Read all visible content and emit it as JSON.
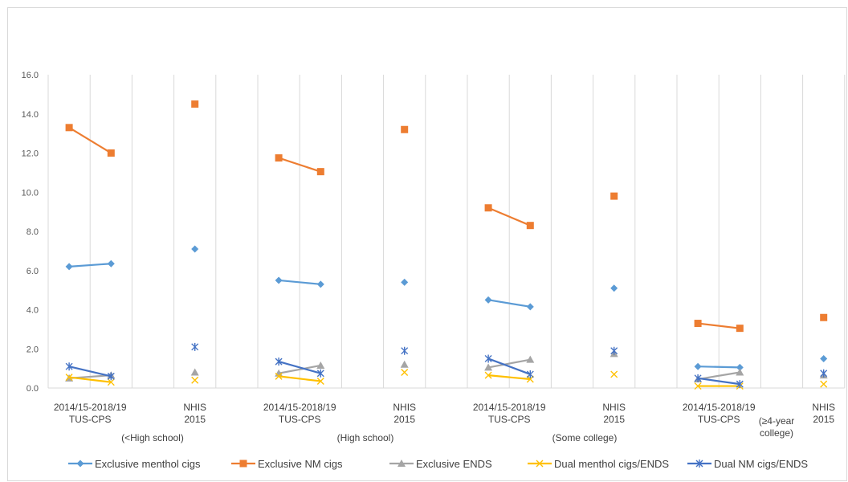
{
  "chart_data": {
    "type": "line",
    "title": "",
    "xlabel": "",
    "ylabel": "",
    "ylim": [
      0,
      16
    ],
    "y_ticks": [
      "0.0",
      "2.0",
      "4.0",
      "6.0",
      "8.0",
      "10.0",
      "12.0",
      "14.0",
      "16.0"
    ],
    "grid": "vertical",
    "legend_position": "bottom",
    "colors": {
      "Exclusive menthol cigs": "#5b9bd5",
      "Exclusive NM cigs": "#ed7d31",
      "Exclusive ENDS": "#a5a5a5",
      "Dual menthol cigs/ENDS": "#ffc000",
      "Dual NM cigs/ENDS": "#4472c4"
    },
    "x_labels": [
      [
        "2014/15-2018/19",
        "TUS-CPS"
      ],
      [
        "NHIS",
        "2015"
      ],
      [
        "2014/15-2018/19",
        "TUS-CPS"
      ],
      [
        "NHIS",
        "2015"
      ],
      [
        "2014/15-2018/19",
        "TUS-CPS"
      ],
      [
        "NHIS",
        "2015"
      ],
      [
        "2014/15-2018/19",
        "TUS-CPS"
      ],
      [
        "NHIS",
        "2015"
      ]
    ],
    "group_labels": [
      [
        "(<High school)"
      ],
      [
        "(High school)"
      ],
      [
        "(Some college)"
      ],
      [
        "(≥4-year",
        "college)"
      ]
    ],
    "series": [
      {
        "name": "Exclusive menthol cigs",
        "marker": "diamond",
        "groups": [
          {
            "tus": [
              6.2,
              6.35
            ],
            "nhis": 7.1
          },
          {
            "tus": [
              5.5,
              5.3
            ],
            "nhis": 5.4
          },
          {
            "tus": [
              4.5,
              4.15
            ],
            "nhis": 5.1
          },
          {
            "tus": [
              1.1,
              1.05
            ],
            "nhis": 1.5
          }
        ]
      },
      {
        "name": "Exclusive NM cigs",
        "marker": "square",
        "groups": [
          {
            "tus": [
              13.3,
              12.0
            ],
            "nhis": 14.5
          },
          {
            "tus": [
              11.75,
              11.05
            ],
            "nhis": 13.2
          },
          {
            "tus": [
              9.2,
              8.3
            ],
            "nhis": 9.8
          },
          {
            "tus": [
              3.3,
              3.05
            ],
            "nhis": 3.6
          }
        ]
      },
      {
        "name": "Exclusive ENDS",
        "marker": "triangle",
        "groups": [
          {
            "tus": [
              0.5,
              0.65
            ],
            "nhis": 0.8
          },
          {
            "tus": [
              0.75,
              1.15
            ],
            "nhis": 1.2
          },
          {
            "tus": [
              1.05,
              1.45
            ],
            "nhis": 1.75
          },
          {
            "tus": [
              0.45,
              0.8
            ],
            "nhis": 0.65
          }
        ]
      },
      {
        "name": "Dual menthol cigs/ENDS",
        "marker": "x",
        "groups": [
          {
            "tus": [
              0.55,
              0.3
            ],
            "nhis": 0.4
          },
          {
            "tus": [
              0.6,
              0.35
            ],
            "nhis": 0.8
          },
          {
            "tus": [
              0.65,
              0.45
            ],
            "nhis": 0.7
          },
          {
            "tus": [
              0.1,
              0.1
            ],
            "nhis": 0.2
          }
        ]
      },
      {
        "name": "Dual NM cigs/ENDS",
        "marker": "asterisk",
        "groups": [
          {
            "tus": [
              1.1,
              0.6
            ],
            "nhis": 2.1
          },
          {
            "tus": [
              1.35,
              0.75
            ],
            "nhis": 1.9
          },
          {
            "tus": [
              1.5,
              0.7
            ],
            "nhis": 1.9
          },
          {
            "tus": [
              0.5,
              0.2
            ],
            "nhis": 0.75
          }
        ]
      }
    ]
  }
}
